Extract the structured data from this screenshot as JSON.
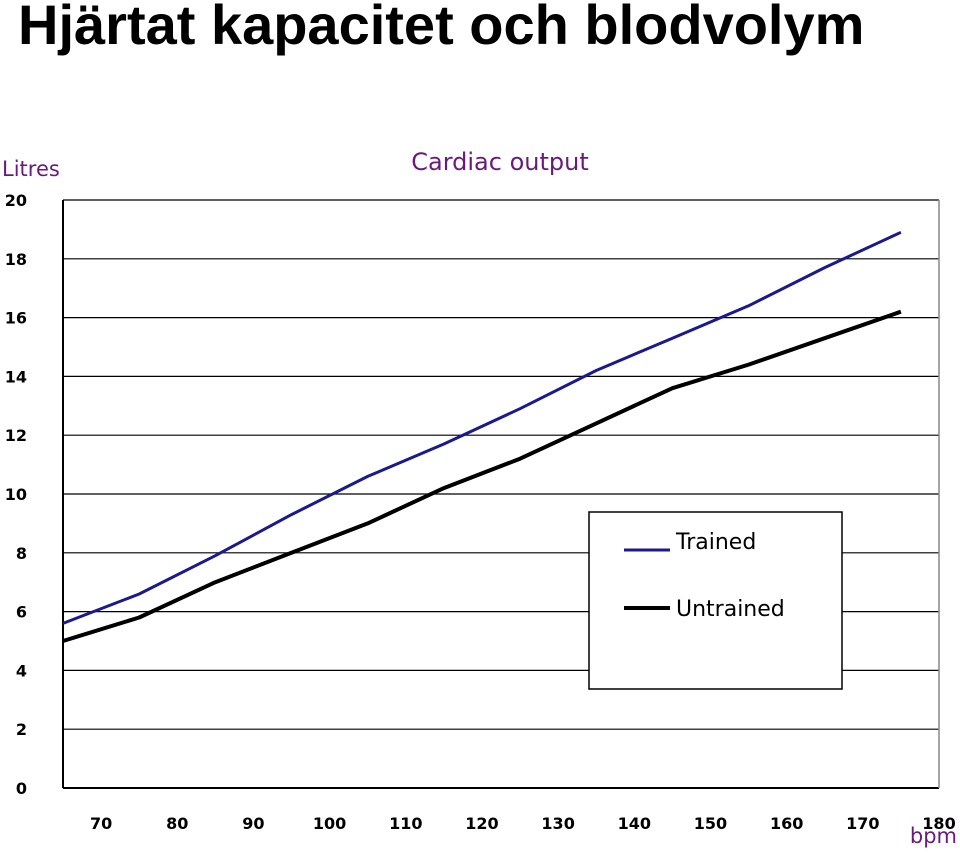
{
  "slide": {
    "title": "Hjärtat kapacitet och blodvolym"
  },
  "chart_data": {
    "type": "line",
    "title": "Cardiac output",
    "ylabel": "Litres",
    "xlabel": "bpm",
    "x_ticks": [
      "70",
      "80",
      "90",
      "100",
      "110",
      "120",
      "130",
      "140",
      "150",
      "160",
      "170",
      "180"
    ],
    "y_ticks": [
      "0",
      "2",
      "4",
      "6",
      "8",
      "10",
      "12",
      "14",
      "16",
      "18",
      "20"
    ],
    "xlim": [
      65,
      180
    ],
    "ylim": [
      0,
      20
    ],
    "grid": "horizontal",
    "legend_position": "bottom-right",
    "series": [
      {
        "name": "Trained",
        "color": "#1a1a8c",
        "x": [
          65,
          75,
          85,
          95,
          105,
          115,
          125,
          135,
          145,
          155,
          165,
          175
        ],
        "y": [
          5.6,
          6.6,
          7.9,
          9.3,
          10.6,
          11.7,
          12.9,
          14.2,
          15.3,
          16.4,
          17.7,
          18.9
        ]
      },
      {
        "name": "Untrained",
        "color": "#000000",
        "x": [
          65,
          75,
          85,
          95,
          105,
          115,
          125,
          135,
          145,
          155,
          165,
          175
        ],
        "y": [
          5.0,
          5.8,
          7.0,
          8.0,
          9.0,
          10.2,
          11.2,
          12.4,
          13.6,
          14.4,
          15.3,
          16.2
        ]
      }
    ]
  }
}
